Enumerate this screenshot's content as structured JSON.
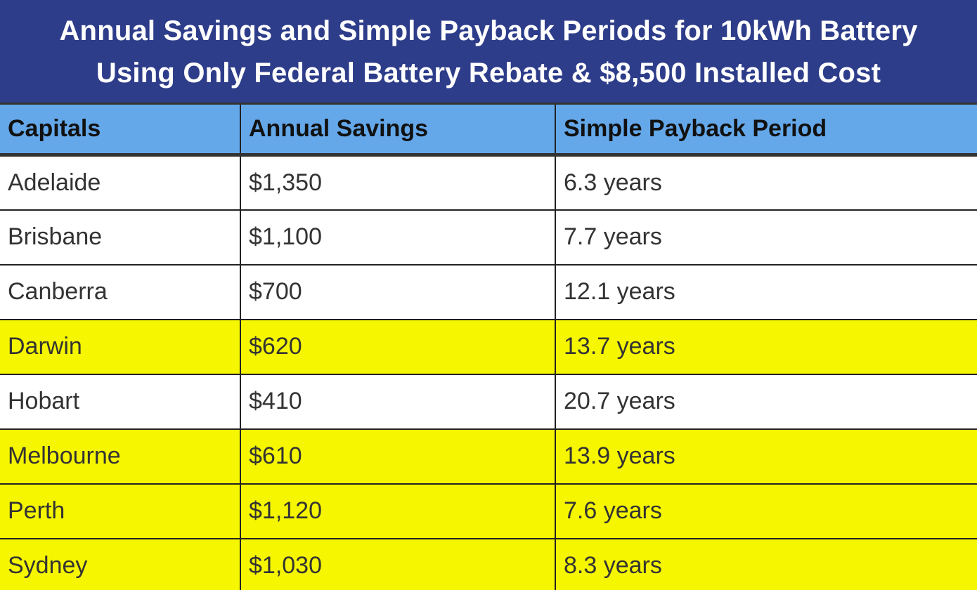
{
  "title": {
    "line1": "Annual Savings and Simple Payback Periods for 10kWh Battery",
    "line2": "Using Only Federal Battery Rebate & $8,500 Installed Cost"
  },
  "colors": {
    "title_bg": "#2e3d8a",
    "header_bg": "#64a8ea",
    "highlight": "#f6f600"
  },
  "chart_data": {
    "type": "table",
    "title": "Annual Savings and Simple Payback Periods for 10kWh Battery Using Only Federal Battery Rebate & $8,500 Installed Cost",
    "columns": [
      "Capitals",
      "Annual Savings",
      "Simple Payback Period"
    ],
    "rows": [
      {
        "capital": "Adelaide",
        "savings": "$1,350",
        "payback": "6.3 years",
        "highlight": false
      },
      {
        "capital": "Brisbane",
        "savings": "$1,100",
        "payback": "7.7 years",
        "highlight": false
      },
      {
        "capital": "Canberra",
        "savings": "$700",
        "payback": "12.1 years",
        "highlight": false
      },
      {
        "capital": "Darwin",
        "savings": "$620",
        "payback": "13.7 years",
        "highlight": true
      },
      {
        "capital": "Hobart",
        "savings": "$410",
        "payback": "20.7 years",
        "highlight": false
      },
      {
        "capital": "Melbourne",
        "savings": "$610",
        "payback": "13.9 years",
        "highlight": true
      },
      {
        "capital": "Perth",
        "savings": "$1,120",
        "payback": "7.6 years",
        "highlight": true
      },
      {
        "capital": "Sydney",
        "savings": "$1,030",
        "payback": "8.3 years",
        "highlight": true
      }
    ]
  }
}
